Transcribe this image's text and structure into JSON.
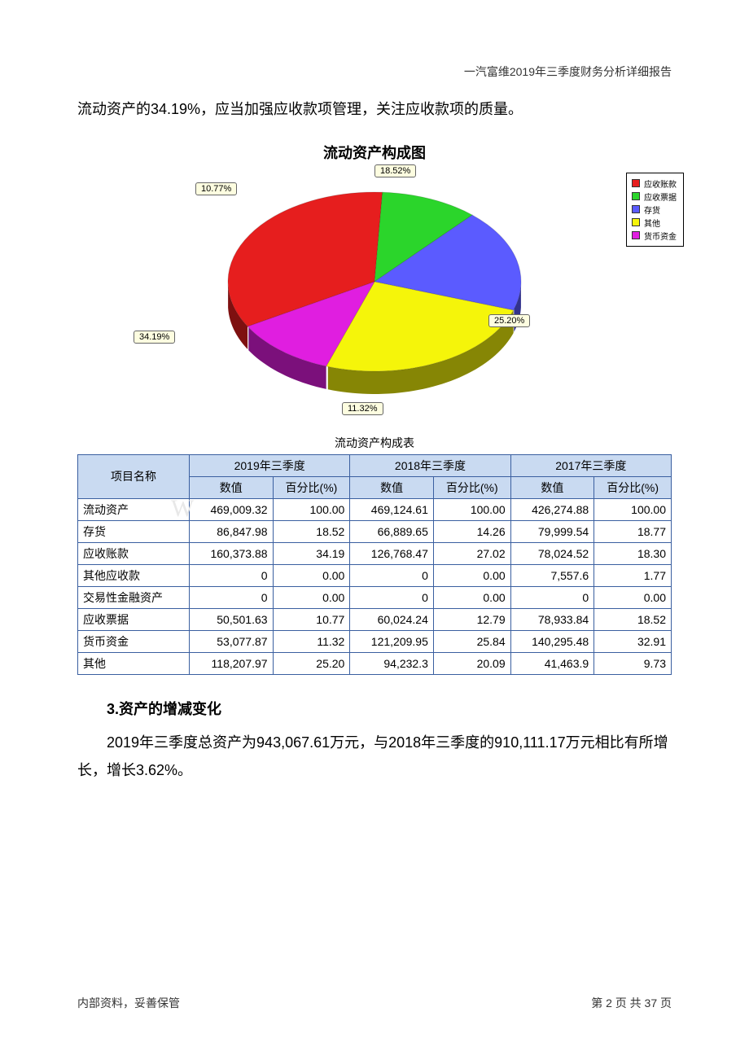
{
  "header": {
    "doc_title": "一汽富维2019年三季度财务分析详细报告"
  },
  "intro": "流动资产的34.19%，应当加强应收款项管理，关注应收款项的质量。",
  "chart": {
    "type": "pie",
    "title": "流动资产构成图",
    "slices": [
      {
        "name": "应收账款",
        "pct": 34.19,
        "color": "#e61e1e",
        "label": "34.19%"
      },
      {
        "name": "应收票据",
        "pct": 10.77,
        "color": "#2bd52b",
        "label": "10.77%"
      },
      {
        "name": "存货",
        "pct": 18.52,
        "color": "#5b5bff",
        "label": "18.52%"
      },
      {
        "name": "其他",
        "pct": 25.2,
        "color": "#f5f50a",
        "label": "25.20%"
      },
      {
        "name": "货币资金",
        "pct": 11.32,
        "color": "#e01ee0",
        "label": "11.32%"
      }
    ],
    "value_label_bg": "#fdfde0",
    "value_label_border": "#666666",
    "legend_border": "#000000",
    "background_color": "#ffffff"
  },
  "table": {
    "caption": "流动资产构成表",
    "header_bg": "#c9daf1",
    "border_color": "#3a5fa0",
    "col_groups": [
      "2019年三季度",
      "2018年三季度",
      "2017年三季度"
    ],
    "subcols": [
      "数值",
      "百分比(%)"
    ],
    "row_label_header": "项目名称",
    "rows": [
      {
        "label": "流动资产",
        "c": [
          "469,009.32",
          "100.00",
          "469,124.61",
          "100.00",
          "426,274.88",
          "100.00"
        ]
      },
      {
        "label": "存货",
        "c": [
          "86,847.98",
          "18.52",
          "66,889.65",
          "14.26",
          "79,999.54",
          "18.77"
        ]
      },
      {
        "label": "应收账款",
        "c": [
          "160,373.88",
          "34.19",
          "126,768.47",
          "27.02",
          "78,024.52",
          "18.30"
        ]
      },
      {
        "label": "其他应收款",
        "c": [
          "0",
          "0.00",
          "0",
          "0.00",
          "7,557.6",
          "1.77"
        ]
      },
      {
        "label": "交易性金融资产",
        "c": [
          "0",
          "0.00",
          "0",
          "0.00",
          "0",
          "0.00"
        ]
      },
      {
        "label": "应收票据",
        "c": [
          "50,501.63",
          "10.77",
          "60,024.24",
          "12.79",
          "78,933.84",
          "18.52"
        ]
      },
      {
        "label": "货币资金",
        "c": [
          "53,077.87",
          "11.32",
          "121,209.95",
          "25.84",
          "140,295.48",
          "32.91"
        ]
      },
      {
        "label": "其他",
        "c": [
          "118,207.97",
          "25.20",
          "94,232.3",
          "20.09",
          "41,463.9",
          "9.73"
        ]
      }
    ]
  },
  "section": {
    "heading": "3.资产的增减变化",
    "body": "2019年三季度总资产为943,067.61万元，与2018年三季度的910,111.17万元相比有所增长，增长3.62%。"
  },
  "footer": {
    "left": "内部资料，妥善保管",
    "right": "第 2 页 共 37 页"
  },
  "watermark": "W"
}
